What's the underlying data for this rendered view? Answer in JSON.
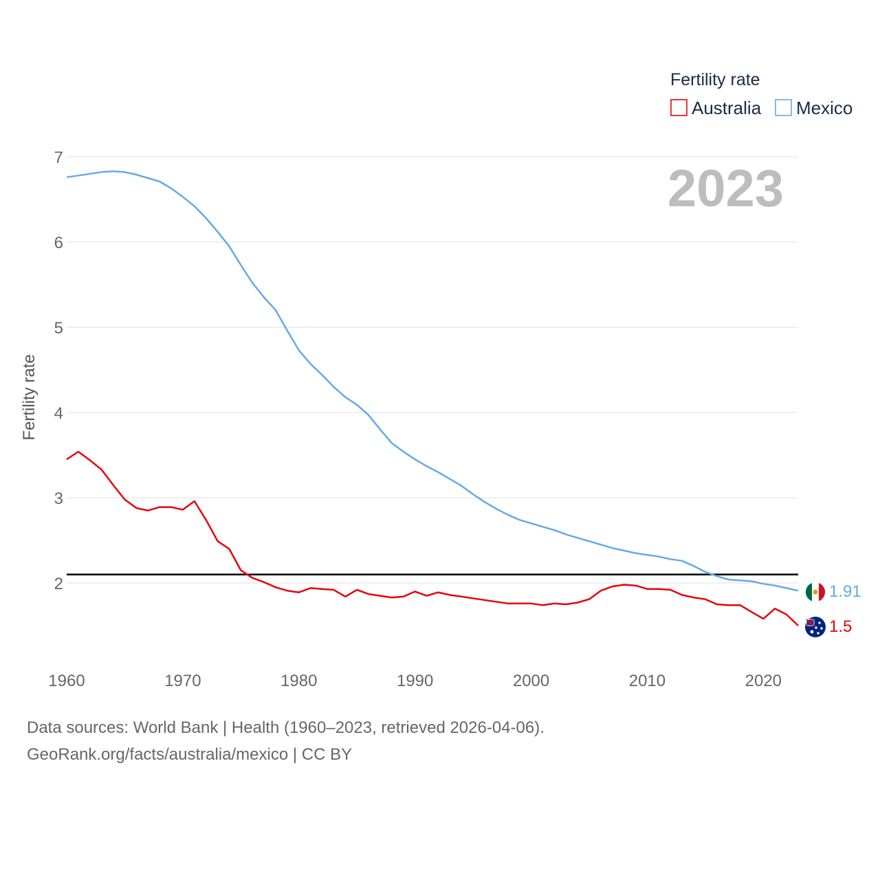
{
  "chart_data": {
    "type": "line",
    "title": "",
    "xlabel": "",
    "ylabel": "Fertility rate",
    "xlim": [
      1960,
      2023
    ],
    "ylim": [
      1.0,
      7.0
    ],
    "yticks": [
      2,
      3,
      4,
      5,
      6,
      7
    ],
    "xticks": [
      1960,
      1970,
      1980,
      1990,
      2000,
      2010,
      2020
    ],
    "legend": {
      "title": "Fertility rate",
      "position": "top-right"
    },
    "year_label": "2023",
    "reference_line": {
      "value": 2.1,
      "color": "#000000"
    },
    "x": [
      1960,
      1961,
      1962,
      1963,
      1964,
      1965,
      1966,
      1967,
      1968,
      1969,
      1970,
      1971,
      1972,
      1973,
      1974,
      1975,
      1976,
      1977,
      1978,
      1979,
      1980,
      1981,
      1982,
      1983,
      1984,
      1985,
      1986,
      1987,
      1988,
      1989,
      1990,
      1991,
      1992,
      1993,
      1994,
      1995,
      1996,
      1997,
      1998,
      1999,
      2000,
      2001,
      2002,
      2003,
      2004,
      2005,
      2006,
      2007,
      2008,
      2009,
      2010,
      2011,
      2012,
      2013,
      2014,
      2015,
      2016,
      2017,
      2018,
      2019,
      2020,
      2021,
      2022,
      2023
    ],
    "series": [
      {
        "name": "Australia",
        "color": "#e8000b",
        "end_label": "1.5",
        "flag": "australia-flag-icon",
        "values": [
          3.45,
          3.54,
          3.44,
          3.33,
          3.15,
          2.98,
          2.88,
          2.85,
          2.89,
          2.89,
          2.86,
          2.96,
          2.74,
          2.49,
          2.4,
          2.15,
          2.06,
          2.01,
          1.95,
          1.91,
          1.89,
          1.94,
          1.93,
          1.92,
          1.84,
          1.92,
          1.87,
          1.85,
          1.83,
          1.84,
          1.9,
          1.85,
          1.89,
          1.86,
          1.84,
          1.82,
          1.8,
          1.78,
          1.76,
          1.76,
          1.76,
          1.74,
          1.76,
          1.75,
          1.77,
          1.81,
          1.91,
          1.96,
          1.98,
          1.97,
          1.93,
          1.93,
          1.92,
          1.86,
          1.83,
          1.81,
          1.75,
          1.74,
          1.74,
          1.66,
          1.58,
          1.7,
          1.63,
          1.5
        ]
      },
      {
        "name": "Mexico",
        "color": "#64a9e8",
        "end_label": "1.91",
        "flag": "mexico-flag-icon",
        "values": [
          6.76,
          6.78,
          6.8,
          6.82,
          6.83,
          6.82,
          6.79,
          6.75,
          6.71,
          6.63,
          6.53,
          6.42,
          6.28,
          6.12,
          5.95,
          5.73,
          5.52,
          5.35,
          5.2,
          4.96,
          4.73,
          4.57,
          4.44,
          4.3,
          4.18,
          4.09,
          3.97,
          3.8,
          3.64,
          3.54,
          3.45,
          3.37,
          3.3,
          3.22,
          3.14,
          3.04,
          2.95,
          2.87,
          2.8,
          2.74,
          2.7,
          2.66,
          2.62,
          2.57,
          2.53,
          2.49,
          2.45,
          2.41,
          2.38,
          2.35,
          2.33,
          2.31,
          2.28,
          2.26,
          2.2,
          2.13,
          2.08,
          2.04,
          2.03,
          2.02,
          1.99,
          1.97,
          1.94,
          1.91
        ]
      }
    ]
  },
  "footer": {
    "source_line": "Data sources: World Bank | Health (1960–2023, retrieved 2026-04-06).",
    "credit_line": "GeoRank.org/facts/australia/mexico | CC BY"
  }
}
